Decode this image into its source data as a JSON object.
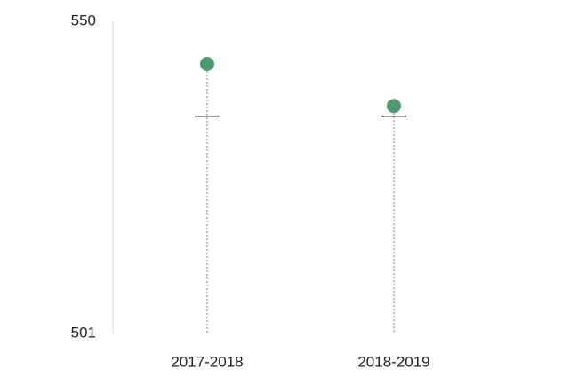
{
  "chart_data": {
    "type": "dot",
    "categories": [
      "2017-2018",
      "2018-2019"
    ],
    "series": [
      {
        "color": "#4e9a6e",
        "values": [
          543.3,
          536.7
        ]
      },
      {
        "color": "#111111",
        "values": [
          535.1,
          535.1
        ]
      }
    ],
    "ylim": [
      501,
      550
    ],
    "yticks": [
      501,
      550
    ]
  }
}
